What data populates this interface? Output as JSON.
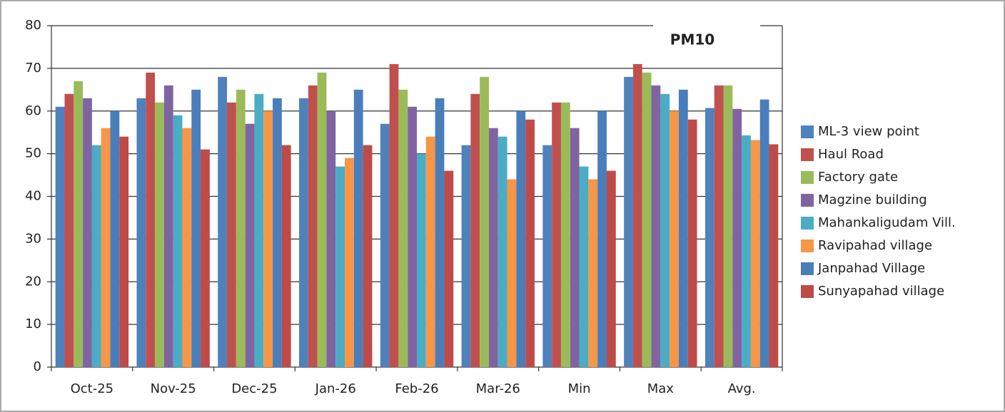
{
  "chart_data": {
    "type": "bar",
    "title": "PM10",
    "categories": [
      "Oct-25",
      "Nov-25",
      "Dec-25",
      "Jan-26",
      "Feb-26",
      "Mar-26",
      "Min",
      "Max",
      "Avg."
    ],
    "series": [
      {
        "name": "ML-3 view point",
        "color": "#4f81bd",
        "values": [
          61,
          63,
          68,
          63,
          57,
          52,
          52,
          68,
          60.7
        ]
      },
      {
        "name": "Haul Road",
        "color": "#c0504d",
        "values": [
          64,
          69,
          62,
          66,
          71,
          64,
          62,
          71,
          66
        ]
      },
      {
        "name": "Factory gate",
        "color": "#9bbb59",
        "values": [
          67,
          62,
          65,
          69,
          65,
          68,
          62,
          69,
          66
        ]
      },
      {
        "name": "Magzine building",
        "color": "#8064a2",
        "values": [
          63,
          66,
          57,
          60,
          61,
          56,
          56,
          66,
          60.5
        ]
      },
      {
        "name": "Mahankaligudam Vill.",
        "color": "#4bacc6",
        "values": [
          52,
          59,
          64,
          47,
          50,
          54,
          47,
          64,
          54.3
        ]
      },
      {
        "name": "Ravipahad village",
        "color": "#f79646",
        "values": [
          56,
          56,
          60,
          49,
          54,
          44,
          44,
          60,
          53.2
        ]
      },
      {
        "name": "Janpahad Village",
        "color": "#4a7ebb",
        "values": [
          60,
          65,
          63,
          65,
          63,
          60,
          60,
          65,
          62.7
        ]
      },
      {
        "name": "Sunyapahad village",
        "color": "#be4b48",
        "values": [
          54,
          51,
          52,
          52,
          46,
          58,
          46,
          58,
          52.2
        ]
      }
    ],
    "ylim": [
      0,
      80
    ],
    "yticks": [
      0,
      10,
      20,
      30,
      40,
      50,
      60,
      70,
      80
    ],
    "grid": true,
    "legend": "right"
  }
}
